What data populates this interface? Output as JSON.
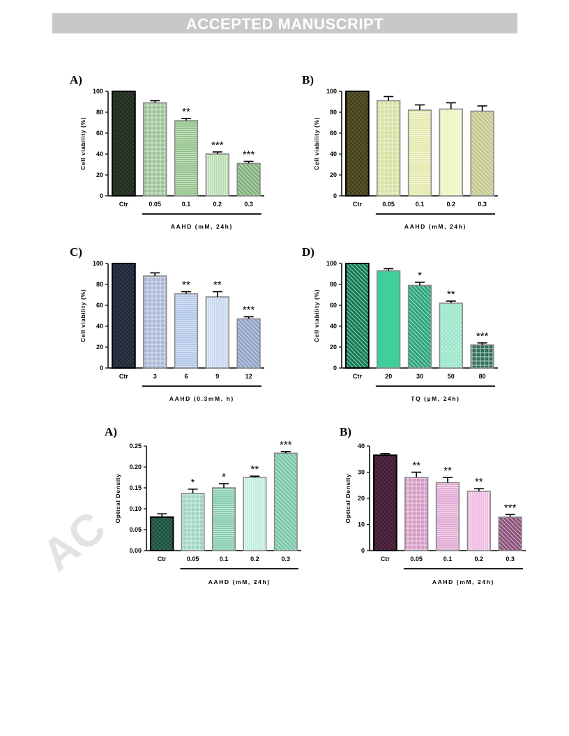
{
  "banner": "ACCEPTED MANUSCRIPT",
  "watermark": "AC",
  "colors": {
    "banner_bg": "#c8c8c8",
    "axis": "#000000"
  },
  "chart_data": [
    {
      "panel_label": "A)",
      "type": "bar",
      "categories": [
        "Ctr",
        "0.05",
        "0.1",
        "0.2",
        "0.3"
      ],
      "values": [
        100,
        89,
        72,
        40,
        31
      ],
      "errors": [
        0,
        2,
        2,
        2,
        2
      ],
      "significance": [
        "",
        "",
        "**",
        "***",
        "***"
      ],
      "ylabel": "Cell viability (%)",
      "xlabel": "AAHD (mM, 24h)",
      "ylim": [
        0,
        100
      ],
      "yticks": [
        "0",
        "20",
        "40",
        "60",
        "80",
        "100"
      ],
      "fills": [
        "#2f3f2f",
        "#9bc297",
        "#8fbf86",
        "#b6dcad",
        "#7fb07a"
      ],
      "patterns": [
        "crosshatch",
        "checker",
        "hlines",
        "vlines",
        "diag"
      ]
    },
    {
      "panel_label": "B)",
      "type": "bar",
      "categories": [
        "Ctr",
        "0.05",
        "0.1",
        "0.2",
        "0.3"
      ],
      "values": [
        100,
        91,
        82,
        83,
        81
      ],
      "errors": [
        0,
        4,
        5,
        6,
        5
      ],
      "significance": [
        "",
        "",
        "",
        "",
        ""
      ],
      "ylabel": "Cell viability (%)",
      "xlabel": "AAHD (mM, 24h)",
      "ylim": [
        0,
        100
      ],
      "yticks": [
        "0",
        "20",
        "40",
        "60",
        "80",
        "100"
      ],
      "fills": [
        "#5c5a2c",
        "#d8e0a0",
        "#e2e8a8",
        "#eef3c0",
        "#c4c88a"
      ],
      "patterns": [
        "crosshatch",
        "checker",
        "hlines",
        "vlines",
        "diag"
      ]
    },
    {
      "panel_label": "C)",
      "type": "bar",
      "categories": [
        "Ctr",
        "3",
        "6",
        "9",
        "12"
      ],
      "values": [
        100,
        88,
        71,
        68,
        47
      ],
      "errors": [
        0,
        3,
        2,
        5,
        2
      ],
      "significance": [
        "",
        "",
        "**",
        "**",
        "***"
      ],
      "ylabel": "Cell viability (%)",
      "xlabel": "AAHD (0.3mM, h)",
      "ylim": [
        0,
        100
      ],
      "yticks": [
        "0",
        "20",
        "40",
        "60",
        "80",
        "100"
      ],
      "fills": [
        "#2f3a4d",
        "#a9b8d6",
        "#aec4e6",
        "#c5d6ef",
        "#8fa2c7"
      ],
      "patterns": [
        "crosshatch",
        "checker",
        "hlines",
        "vlines",
        "diag"
      ]
    },
    {
      "panel_label": "D)",
      "type": "bar",
      "categories": [
        "Ctr",
        "20",
        "30",
        "50",
        "80"
      ],
      "values": [
        100,
        93,
        79,
        62,
        22
      ],
      "errors": [
        0,
        2,
        3,
        2,
        2
      ],
      "significance": [
        "",
        "",
        "*",
        "**",
        "***"
      ],
      "ylabel": "Cell viability (%)",
      "xlabel": "TQ (µM, 24h)",
      "ylim": [
        0,
        100
      ],
      "yticks": [
        "0",
        "20",
        "40",
        "60",
        "80",
        "100"
      ],
      "fills": [
        "#0e7a52",
        "#3ecf9a",
        "#2aa37a",
        "#9ee8cc",
        "#2f6e58"
      ],
      "patterns": [
        "diag",
        "solid",
        "diag",
        "dots",
        "grid"
      ]
    },
    {
      "panel_label": "A)",
      "type": "bar",
      "categories": [
        "Ctr",
        "0.05",
        "0.1",
        "0.2",
        "0.3"
      ],
      "values": [
        0.08,
        0.137,
        0.15,
        0.175,
        0.233
      ],
      "errors": [
        0.008,
        0.01,
        0.01,
        0.003,
        0.004
      ],
      "significance": [
        "",
        "*",
        "*",
        "**",
        "***"
      ],
      "ylabel": "Optical Density",
      "xlabel": "AAHD (mM, 24h)",
      "ylim": [
        0,
        0.25
      ],
      "yticks": [
        "0.00",
        "0.05",
        "0.10",
        "0.15",
        "0.20",
        "0.25"
      ],
      "fills": [
        "#2f6e56",
        "#9dd6c0",
        "#7fcaa9",
        "#bfeedd",
        "#78c7a7"
      ],
      "patterns": [
        "crosshatch",
        "checker",
        "hlines",
        "vlines",
        "diag"
      ]
    },
    {
      "panel_label": "B)",
      "type": "bar",
      "categories": [
        "Ctr",
        "0.05",
        "0.1",
        "0.2",
        "0.3"
      ],
      "values": [
        36.5,
        28,
        26,
        22.7,
        12.8
      ],
      "errors": [
        0.6,
        2,
        2,
        1,
        1
      ],
      "significance": [
        "",
        "**",
        "**",
        "**",
        "***"
      ],
      "ylabel": "Optical Density",
      "xlabel": "AAHD (mM, 24h)",
      "ylim": [
        0,
        40
      ],
      "yticks": [
        "0",
        "10",
        "20",
        "30",
        "40"
      ],
      "fills": [
        "#5a2a48",
        "#d59ac4",
        "#e0a6d2",
        "#efb8e0",
        "#8a4f78"
      ],
      "patterns": [
        "crosshatch",
        "checker",
        "hlines",
        "vlines",
        "diag"
      ]
    }
  ]
}
